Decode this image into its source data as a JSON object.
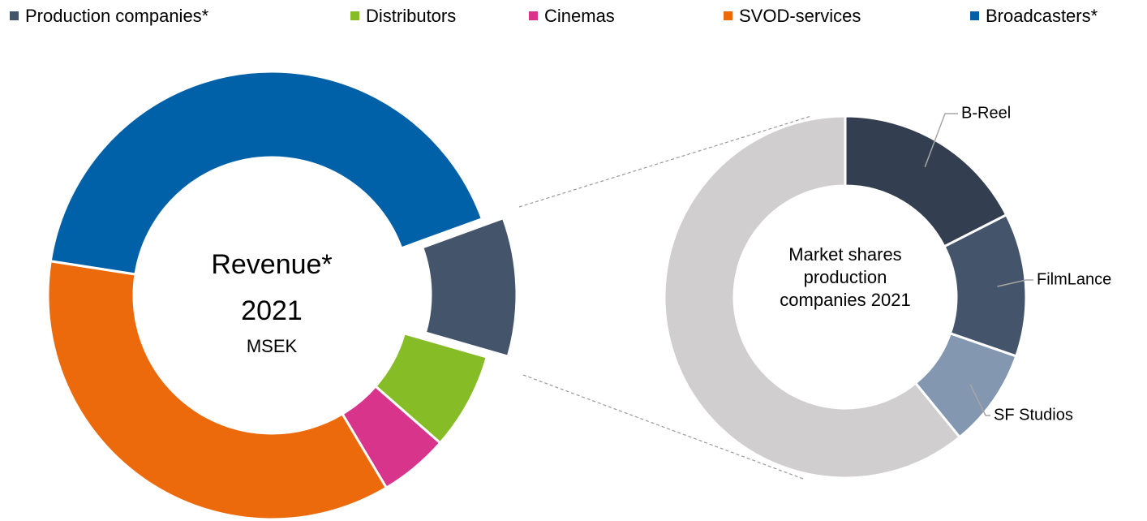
{
  "chart_data": [
    {
      "type": "donut",
      "center_text": [
        "Revenue*",
        "2021",
        "MSEK"
      ],
      "categories": [
        "Production companies*",
        "Distributors",
        "Cinemas",
        "SVOD-services",
        "Broadcasters*"
      ],
      "values": [
        10,
        7,
        5,
        36,
        42
      ],
      "colors": [
        "#44546a",
        "#86bc25",
        "#d9348c",
        "#ec6a0c",
        "#0061a8"
      ],
      "legend": "top"
    },
    {
      "type": "donut",
      "center_text": "Market shares production companies 2021",
      "categories": [
        "B-Reel",
        "FilmLance",
        "SF Studios",
        null
      ],
      "values": [
        17.5,
        12.8,
        8.8,
        60.9
      ],
      "colors": [
        "#333f50",
        "#44546a",
        "#8497b0",
        "#d0cece"
      ]
    }
  ]
}
